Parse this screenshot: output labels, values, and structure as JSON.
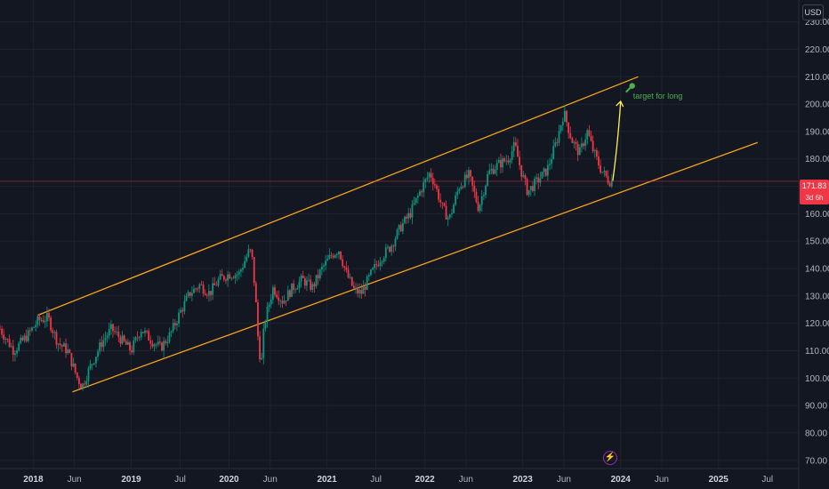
{
  "header": {
    "currency": "USD"
  },
  "price_marker": {
    "value": "171.83",
    "countdown": "3d 6h",
    "color": "#f23645"
  },
  "event_icon": "lightning-icon",
  "colors": {
    "background": "#131722",
    "grid": "#1e222d",
    "up_candle": "#089981",
    "down_candle": "#f23645",
    "channel": "#f7a21b",
    "arrow": "#ffee58",
    "annotation": "#4caf50",
    "price_line": "#f23645"
  },
  "chart_data": {
    "type": "candlestick",
    "symbol_currency": "USD",
    "y_ticks": [
      "70.00",
      "80.00",
      "90.00",
      "100.00",
      "110.00",
      "120.00",
      "130.00",
      "140.00",
      "150.00",
      "160.00",
      "170.00",
      "180.00",
      "190.00",
      "200.00",
      "210.00",
      "220.00",
      "230.00"
    ],
    "ylim": [
      67,
      238
    ],
    "x_ticks": [
      {
        "label": "2018",
        "t": 2018.0,
        "year": true
      },
      {
        "label": "Jun",
        "t": 2018.42
      },
      {
        "label": "2019",
        "t": 2019.0,
        "year": true
      },
      {
        "label": "Jul",
        "t": 2019.5
      },
      {
        "label": "2020",
        "t": 2020.0,
        "year": true
      },
      {
        "label": "Jun",
        "t": 2020.42
      },
      {
        "label": "2021",
        "t": 2021.0,
        "year": true
      },
      {
        "label": "Jul",
        "t": 2021.5
      },
      {
        "label": "2022",
        "t": 2022.0,
        "year": true
      },
      {
        "label": "Jun",
        "t": 2022.42
      },
      {
        "label": "2023",
        "t": 2023.0,
        "year": true
      },
      {
        "label": "Jun",
        "t": 2023.42
      },
      {
        "label": "2024",
        "t": 2024.0,
        "year": true
      },
      {
        "label": "Jun",
        "t": 2024.42
      },
      {
        "label": "2025",
        "t": 2025.0,
        "year": true
      },
      {
        "label": "Jul",
        "t": 2025.5
      }
    ],
    "xlim": [
      2017.66,
      2025.82
    ],
    "price_path": [
      [
        2017.66,
        118
      ],
      [
        2017.8,
        110
      ],
      [
        2017.95,
        116
      ],
      [
        2018.05,
        121
      ],
      [
        2018.15,
        122
      ],
      [
        2018.25,
        113
      ],
      [
        2018.35,
        110
      ],
      [
        2018.45,
        100
      ],
      [
        2018.5,
        97
      ],
      [
        2018.58,
        104
      ],
      [
        2018.7,
        113
      ],
      [
        2018.8,
        118
      ],
      [
        2018.9,
        114
      ],
      [
        2019.0,
        110
      ],
      [
        2019.1,
        118
      ],
      [
        2019.2,
        114
      ],
      [
        2019.3,
        111
      ],
      [
        2019.4,
        116
      ],
      [
        2019.5,
        124
      ],
      [
        2019.6,
        131
      ],
      [
        2019.7,
        134
      ],
      [
        2019.8,
        131
      ],
      [
        2019.9,
        136
      ],
      [
        2020.0,
        138
      ],
      [
        2020.1,
        138
      ],
      [
        2020.2,
        146
      ],
      [
        2020.23,
        146
      ],
      [
        2020.27,
        130
      ],
      [
        2020.3,
        112
      ],
      [
        2020.33,
        105
      ],
      [
        2020.36,
        120
      ],
      [
        2020.45,
        133
      ],
      [
        2020.55,
        128
      ],
      [
        2020.65,
        133
      ],
      [
        2020.75,
        136
      ],
      [
        2020.85,
        133
      ],
      [
        2020.95,
        140
      ],
      [
        2021.05,
        145
      ],
      [
        2021.12,
        147
      ],
      [
        2021.2,
        138
      ],
      [
        2021.28,
        132
      ],
      [
        2021.35,
        131
      ],
      [
        2021.45,
        138
      ],
      [
        2021.55,
        144
      ],
      [
        2021.65,
        148
      ],
      [
        2021.75,
        155
      ],
      [
        2021.85,
        160
      ],
      [
        2021.95,
        168
      ],
      [
        2022.05,
        175
      ],
      [
        2022.1,
        171
      ],
      [
        2022.18,
        162
      ],
      [
        2022.25,
        158
      ],
      [
        2022.35,
        170
      ],
      [
        2022.45,
        174
      ],
      [
        2022.55,
        162
      ],
      [
        2022.65,
        175
      ],
      [
        2022.75,
        178
      ],
      [
        2022.85,
        180
      ],
      [
        2022.92,
        185
      ],
      [
        2022.98,
        176
      ],
      [
        2023.05,
        168
      ],
      [
        2023.15,
        172
      ],
      [
        2023.25,
        176
      ],
      [
        2023.35,
        187
      ],
      [
        2023.42,
        197
      ],
      [
        2023.5,
        187
      ],
      [
        2023.58,
        182
      ],
      [
        2023.66,
        190
      ],
      [
        2023.72,
        183
      ],
      [
        2023.8,
        176
      ],
      [
        2023.88,
        172
      ],
      [
        2023.92,
        171.83
      ]
    ],
    "channel": {
      "upper": {
        "from": [
          2018.05,
          123
        ],
        "to": [
          2024.18,
          210
        ]
      },
      "lower": {
        "from": [
          2018.4,
          95
        ],
        "to": [
          2025.4,
          186
        ]
      }
    },
    "arrow": {
      "from": [
        2023.92,
        172
      ],
      "to": [
        2024.0,
        201
      ]
    },
    "target_marker": {
      "t": 2024.0,
      "price": 206
    },
    "annotation": {
      "text": "target for long",
      "t": 2024.0,
      "price": 202
    },
    "last_price": 171.83
  }
}
